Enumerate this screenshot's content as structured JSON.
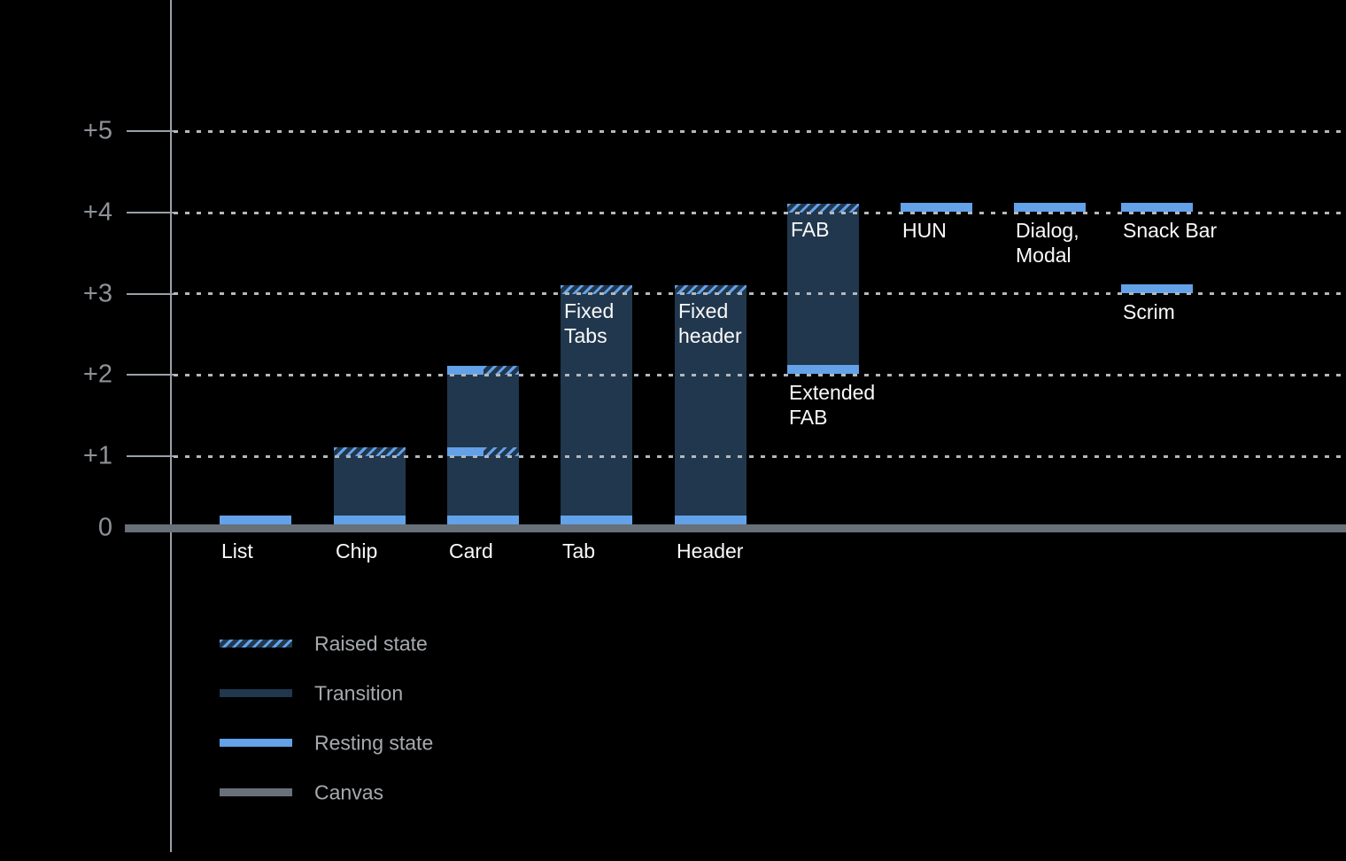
{
  "palette": {
    "background": "#000000",
    "resting_blue": "#63A1E8",
    "transition_navy": "#21374D",
    "canvas_gray": "#68707A",
    "axis_gray": "#9AA0A7",
    "grid_dot_gray": "#B3B8BD",
    "ytick_text_gray": "#8E9296",
    "legend_text_gray": "#A6AAAE",
    "bar_label_white": "#FAFAFA"
  },
  "chart_data": {
    "type": "bar",
    "title": "",
    "ylabel": "",
    "ylim": [
      0,
      5
    ],
    "grid": "dotted horizontal lines at +1 through +5, solid canvas bar at 0",
    "legend_position": "bottom-left",
    "y_axis": {
      "ticks": [
        {
          "label": "+5",
          "level": 5
        },
        {
          "label": "+4",
          "level": 4
        },
        {
          "label": "+3",
          "level": 3
        },
        {
          "label": "+2",
          "level": 2
        },
        {
          "label": "+1",
          "level": 1
        },
        {
          "label": "0",
          "level": 0
        }
      ]
    },
    "legend": [
      {
        "label": "Raised state",
        "kind": "raised"
      },
      {
        "label": "Transition",
        "kind": "transition"
      },
      {
        "label": "Resting state",
        "kind": "resting"
      },
      {
        "label": "Canvas",
        "kind": "canvas"
      }
    ],
    "components": [
      {
        "name": "list",
        "col": 0,
        "resting_level": 0,
        "raised_level": null,
        "bands": [
          {
            "kind": "resting",
            "level": 0
          }
        ],
        "labels": [
          {
            "lines": [
              "List"
            ],
            "placement": "canvas",
            "color": "white"
          }
        ]
      },
      {
        "name": "chip",
        "col": 1,
        "resting_level": 0,
        "raised_level": 1,
        "bands": [
          {
            "kind": "raised",
            "level": 1
          },
          {
            "kind": "body",
            "from": 0,
            "to": 1
          },
          {
            "kind": "resting",
            "level": 0
          }
        ],
        "labels": [
          {
            "lines": [
              "Chip"
            ],
            "placement": "canvas",
            "color": "white"
          }
        ]
      },
      {
        "name": "card",
        "col": 2,
        "resting_level": 1,
        "raised_level": 2,
        "bands": [
          {
            "kind": "split",
            "level": 2
          },
          {
            "kind": "body",
            "from": 0,
            "to": 2
          },
          {
            "kind": "split",
            "level": 1
          },
          {
            "kind": "resting",
            "level": 0
          }
        ],
        "labels": [
          {
            "lines": [
              "Card"
            ],
            "placement": "canvas",
            "color": "white"
          }
        ]
      },
      {
        "name": "tab",
        "col": 3,
        "resting_level": 0,
        "raised_level": 3,
        "bands": [
          {
            "kind": "raised",
            "level": 3
          },
          {
            "kind": "body",
            "from": 0,
            "to": 3
          },
          {
            "kind": "resting",
            "level": 0
          }
        ],
        "labels": [
          {
            "lines": [
              "Tab"
            ],
            "placement": "canvas",
            "color": "white"
          },
          {
            "lines": [
              "Fixed",
              "Tabs"
            ],
            "placement": "inside",
            "level": 3,
            "color": "white"
          }
        ]
      },
      {
        "name": "header",
        "col": 4,
        "resting_level": 0,
        "raised_level": 3,
        "bands": [
          {
            "kind": "raised",
            "level": 3
          },
          {
            "kind": "body",
            "from": 0,
            "to": 3
          },
          {
            "kind": "resting",
            "level": 0
          }
        ],
        "labels": [
          {
            "lines": [
              "Header"
            ],
            "placement": "canvas",
            "color": "white"
          },
          {
            "lines": [
              "Fixed",
              "header"
            ],
            "placement": "inside",
            "level": 3,
            "color": "white"
          }
        ]
      },
      {
        "name": "fab",
        "col": 5,
        "resting_level": 2,
        "raised_level": 4,
        "bands": [
          {
            "kind": "raised",
            "level": 4
          },
          {
            "kind": "body",
            "from": 2,
            "to": 4
          },
          {
            "kind": "resting",
            "level": 2
          }
        ],
        "labels": [
          {
            "lines": [
              "FAB"
            ],
            "placement": "inside",
            "level": 4,
            "color": "white"
          },
          {
            "lines": [
              "Extended",
              "FAB"
            ],
            "placement": "below_band",
            "level": 2,
            "color": "white"
          }
        ]
      },
      {
        "name": "hun",
        "col": 6,
        "resting_level": 4,
        "raised_level": null,
        "bands": [
          {
            "kind": "resting",
            "level": 4
          }
        ],
        "labels": [
          {
            "lines": [
              "HUN"
            ],
            "placement": "below_band",
            "level": 4,
            "color": "white"
          }
        ]
      },
      {
        "name": "dialog-modal",
        "col": 7,
        "resting_level": 4,
        "raised_level": null,
        "bands": [
          {
            "kind": "resting",
            "level": 4
          }
        ],
        "labels": [
          {
            "lines": [
              "Dialog,",
              "Modal"
            ],
            "placement": "below_band",
            "level": 4,
            "color": "white"
          }
        ]
      },
      {
        "name": "snack-bar",
        "col": 8,
        "resting_level": 4,
        "raised_level": null,
        "bands": [
          {
            "kind": "resting",
            "level": 4
          }
        ],
        "labels": [
          {
            "lines": [
              "Snack Bar"
            ],
            "placement": "below_band",
            "level": 4,
            "color": "white"
          }
        ]
      },
      {
        "name": "scrim",
        "col": 8,
        "resting_level": 3,
        "raised_level": null,
        "bands": [
          {
            "kind": "resting",
            "level": 3
          }
        ],
        "labels": [
          {
            "lines": [
              "Scrim"
            ],
            "placement": "below_band",
            "level": 3,
            "color": "white"
          }
        ]
      }
    ]
  }
}
